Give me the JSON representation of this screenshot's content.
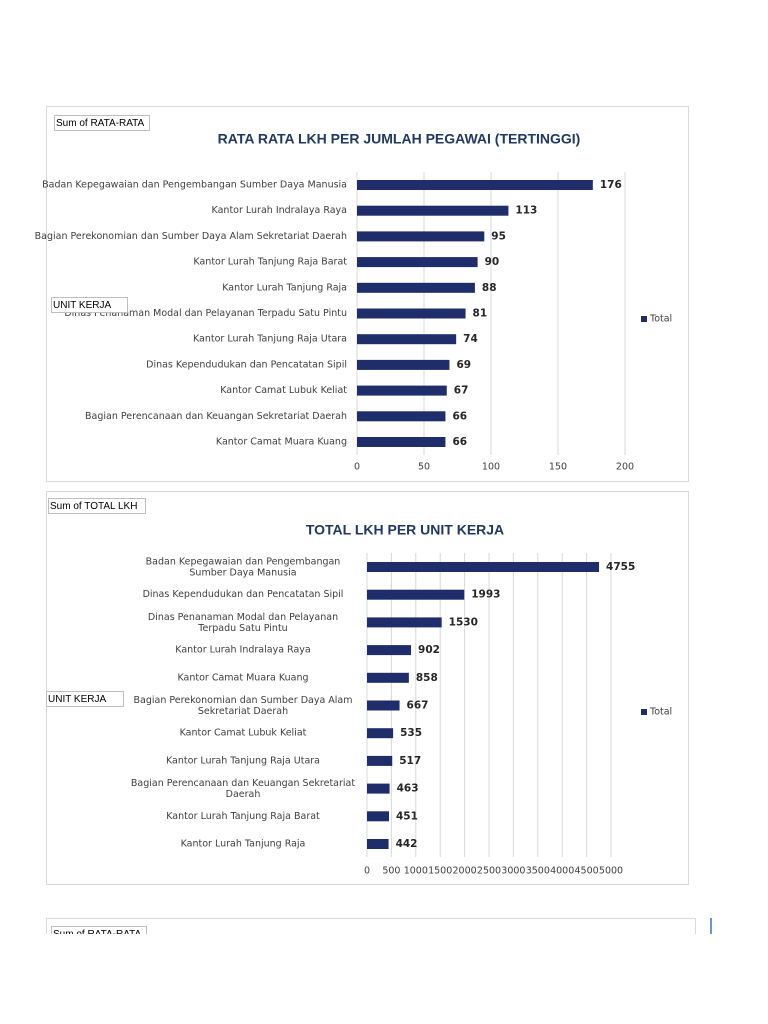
{
  "chart_data": [
    {
      "type": "bar",
      "horizontal": true,
      "title": "RATA RATA LKH PER JUMLAH PEGAWAI (TERTINGGI)",
      "value_field": "Sum of RATA-RATA",
      "row_field": "UNIT KERJA",
      "categories": [
        "Badan Kepegawaian dan Pengembangan Sumber Daya Manusia",
        "Kantor Lurah Indralaya Raya",
        "Bagian Perekonomian dan Sumber Daya Alam Sekretariat Daerah",
        "Kantor Lurah Tanjung Raja Barat",
        "Kantor Lurah Tanjung Raja",
        "Dinas Penanaman Modal dan Pelayanan Terpadu Satu Pintu",
        "Kantor Lurah Tanjung Raja Utara",
        "Dinas Kependudukan dan Pencatatan Sipil",
        "Kantor Camat Lubuk Keliat",
        "Bagian Perencanaan dan Keuangan Sekretariat Daerah",
        "Kantor Camat Muara Kuang"
      ],
      "series": [
        {
          "name": "Total",
          "color": "#1f2d6b",
          "values": [
            176,
            113,
            95,
            90,
            88,
            81,
            74,
            69,
            67,
            66,
            66
          ]
        }
      ],
      "xlim": [
        0,
        200
      ],
      "xticks": [
        0,
        50,
        100,
        150,
        200
      ],
      "grid": true,
      "legend": "right"
    },
    {
      "type": "bar",
      "horizontal": true,
      "title": "TOTAL LKH PER UNIT KERJA",
      "value_field": "Sum of TOTAL LKH",
      "row_field": "UNIT KERJA",
      "categories": [
        "Badan Kepegawaian dan Pengembangan Sumber Daya Manusia",
        "Dinas Kependudukan dan Pencatatan Sipil",
        "Dinas Penanaman Modal dan Pelayanan Terpadu Satu Pintu",
        "Kantor Lurah Indralaya Raya",
        "Kantor Camat Muara Kuang",
        "Bagian Perekonomian dan Sumber Daya Alam Sekretariat Daerah",
        "Kantor Camat Lubuk Keliat",
        "Kantor Lurah Tanjung Raja Utara",
        "Bagian Perencanaan dan Keuangan Sekretariat Daerah",
        "Kantor Lurah Tanjung Raja Barat",
        "Kantor Lurah Tanjung Raja"
      ],
      "series": [
        {
          "name": "Total",
          "color": "#1f2d6b",
          "values": [
            4755,
            1993,
            1530,
            902,
            858,
            667,
            535,
            517,
            463,
            451,
            442
          ]
        }
      ],
      "xlim": [
        0,
        5000
      ],
      "xticks": [
        0,
        500,
        1000,
        1500,
        2000,
        2500,
        3000,
        3500,
        4000,
        4500,
        5000
      ],
      "grid": true,
      "legend": "right"
    },
    {
      "type": "bar",
      "value_field": "Sum of RATA-RATA"
    }
  ]
}
